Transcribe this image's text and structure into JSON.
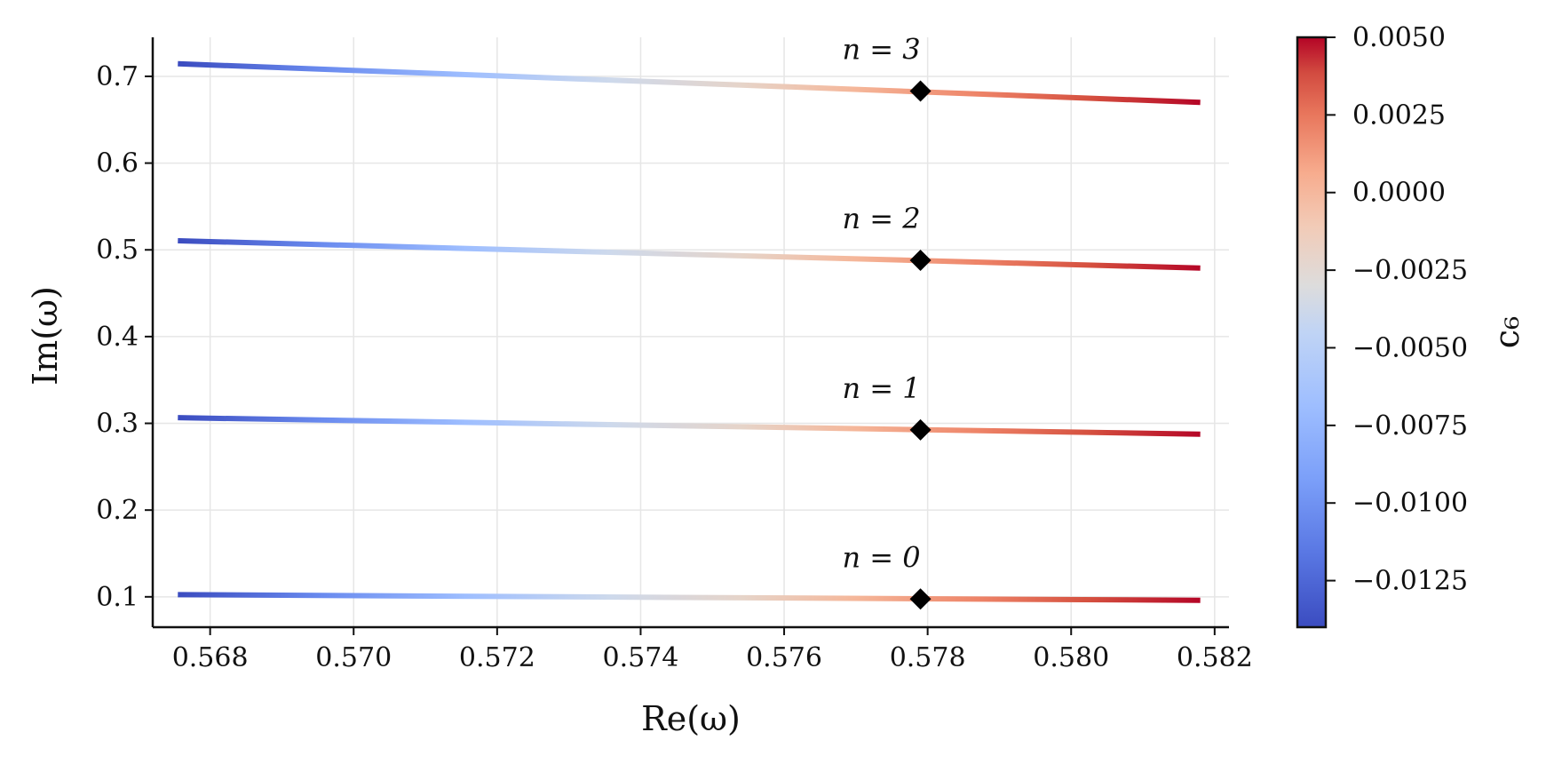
{
  "chart_data": {
    "type": "line",
    "title": "",
    "xlabel": "Re(ω)",
    "ylabel": "Im(ω)",
    "xlim": [
      0.5672,
      0.5822
    ],
    "ylim": [
      0.065,
      0.745
    ],
    "grid": true,
    "x_ticks": [
      0.568,
      0.57,
      0.572,
      0.574,
      0.576,
      0.578,
      0.58,
      0.582
    ],
    "x_tick_labels": [
      "0.568",
      "0.570",
      "0.572",
      "0.574",
      "0.576",
      "0.578",
      "0.580",
      "0.582"
    ],
    "y_ticks": [
      0.1,
      0.2,
      0.3,
      0.4,
      0.5,
      0.6,
      0.7
    ],
    "y_tick_labels": [
      "0.1",
      "0.2",
      "0.3",
      "0.4",
      "0.5",
      "0.6",
      "0.7"
    ],
    "color_param_range": [
      -0.014,
      0.005
    ],
    "series": [
      {
        "label": "n = 0",
        "x": [
          0.56755,
          0.5818
        ],
        "y": [
          0.1025,
          0.096
        ],
        "marker_x": 0.5779,
        "marker_y": 0.0975
      },
      {
        "label": "n = 1",
        "x": [
          0.56755,
          0.5818
        ],
        "y": [
          0.3065,
          0.2875
        ],
        "marker_x": 0.5779,
        "marker_y": 0.2925
      },
      {
        "label": "n = 2",
        "x": [
          0.56755,
          0.5818
        ],
        "y": [
          0.5105,
          0.479
        ],
        "marker_x": 0.5779,
        "marker_y": 0.488
      },
      {
        "label": "n = 3",
        "x": [
          0.56755,
          0.5818
        ],
        "y": [
          0.7145,
          0.67
        ],
        "marker_x": 0.5779,
        "marker_y": 0.683
      }
    ],
    "colorbar": {
      "label": "c₆",
      "range": [
        -0.014,
        0.005
      ],
      "ticks": [
        0.005,
        0.0025,
        0.0,
        -0.0025,
        -0.005,
        -0.0075,
        -0.01,
        -0.0125
      ],
      "tick_labels": [
        "0.0050",
        "0.0025",
        "0.0000",
        "−0.0025",
        "−0.0050",
        "−0.0075",
        "−0.0100",
        "−0.0125"
      ],
      "colormap": "coolwarm",
      "colors": [
        "#3b4cc0",
        "#6889ee",
        "#9abbff",
        "#c9d7f0",
        "#dddcdc",
        "#f2cbb7",
        "#f7a889",
        "#e36c55",
        "#b40426"
      ]
    },
    "marker_color": "#000000"
  }
}
